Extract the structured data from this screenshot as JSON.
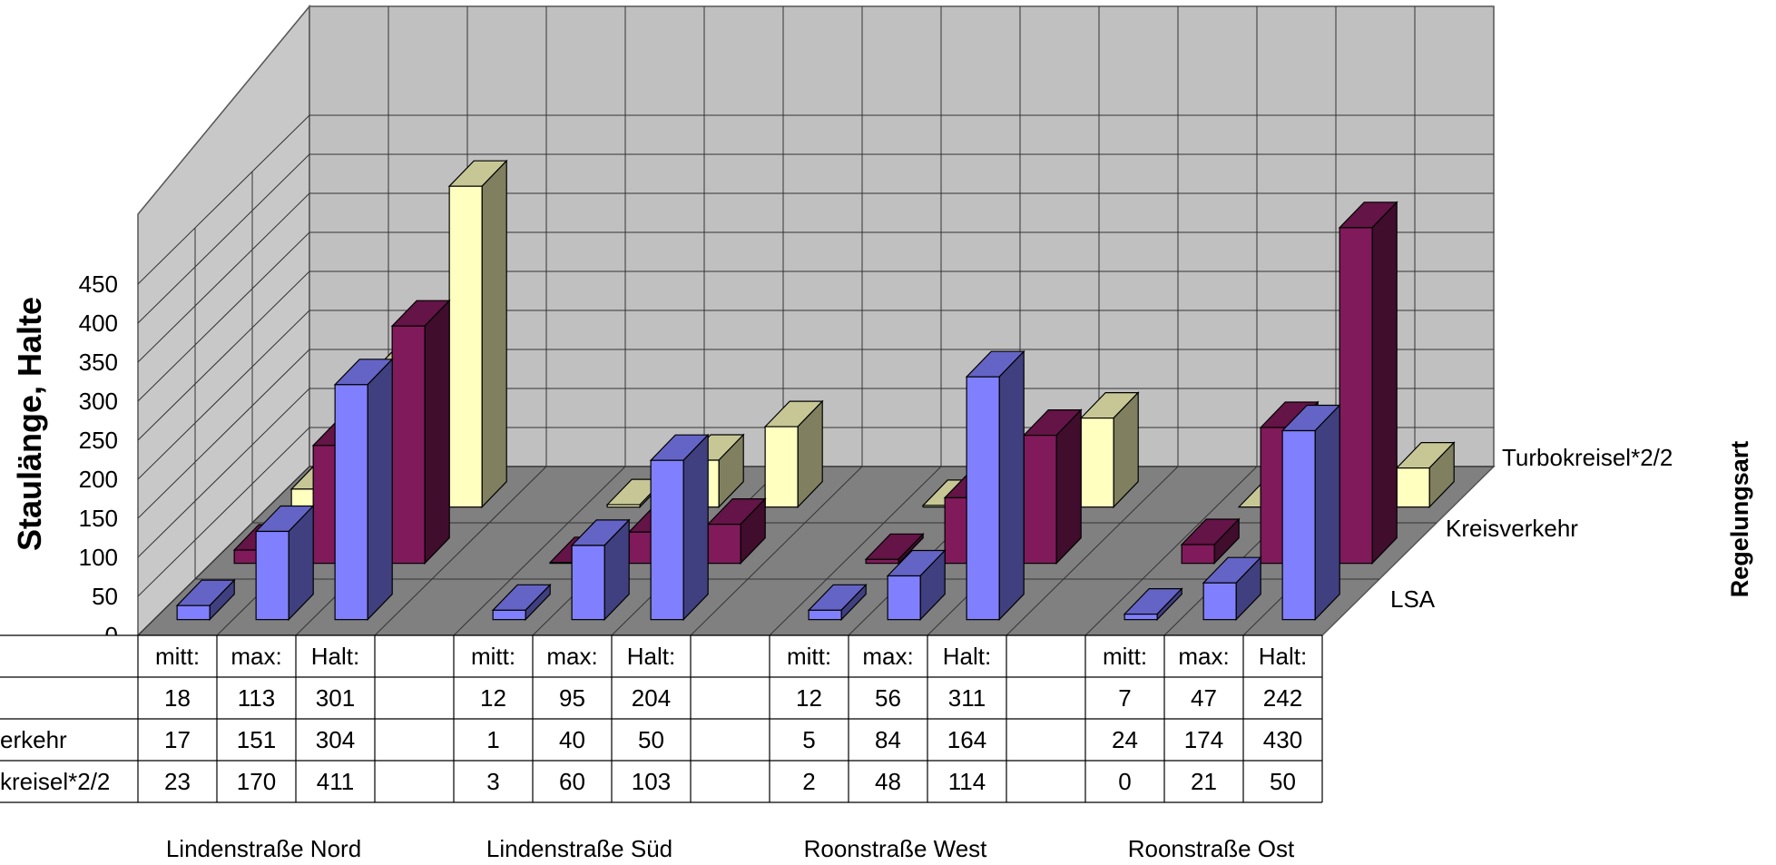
{
  "chart_data": {
    "type": "bar",
    "variant": "3d-column-with-data-table",
    "ylabel": "Staulänge, Halte",
    "zlabel": "Regelungsart",
    "ylim": [
      0,
      450
    ],
    "yticks": [
      0,
      50,
      100,
      150,
      200,
      250,
      300,
      350,
      400,
      450
    ],
    "groups": [
      "Lindenstraße Nord",
      "Lindenstraße Süd",
      "Roonstraße West",
      "Roonstraße Ost"
    ],
    "measures": [
      "mitt:",
      "max:",
      "Halt:"
    ],
    "series": [
      {
        "name": "LSA",
        "table_label": "",
        "color": "#8080ff",
        "values": [
          18,
          113,
          301,
          12,
          95,
          204,
          12,
          56,
          311,
          7,
          47,
          242
        ]
      },
      {
        "name": "Kreisverkehr",
        "table_label": "erkehr",
        "color": "#801a5a",
        "values": [
          17,
          151,
          304,
          1,
          40,
          50,
          5,
          84,
          164,
          24,
          174,
          430
        ]
      },
      {
        "name": "Turbokreisel*2/2",
        "table_label": "kreisel*2/2",
        "color": "#ffffc0",
        "values": [
          23,
          170,
          411,
          3,
          60,
          103,
          2,
          48,
          114,
          0,
          21,
          50
        ]
      }
    ],
    "grid": true
  }
}
